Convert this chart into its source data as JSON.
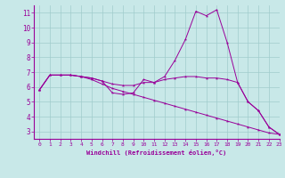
{
  "title": "",
  "xlabel": "Windchill (Refroidissement éolien,°C)",
  "ylabel": "",
  "background_color": "#c8e8e8",
  "line_color": "#990099",
  "xlim": [
    -0.5,
    23
  ],
  "ylim": [
    2.5,
    11.5
  ],
  "xticks": [
    0,
    1,
    2,
    3,
    4,
    5,
    6,
    7,
    8,
    9,
    10,
    11,
    12,
    13,
    14,
    15,
    16,
    17,
    18,
    19,
    20,
    21,
    22,
    23
  ],
  "yticks": [
    3,
    4,
    5,
    6,
    7,
    8,
    9,
    10,
    11
  ],
  "grid_color": "#a0cccc",
  "lines": [
    {
      "x": [
        0,
        1,
        2,
        3,
        4,
        5,
        6,
        7,
        8,
        9,
        10,
        11,
        12,
        13,
        14,
        15,
        16,
        17,
        18,
        19,
        20,
        21,
        22,
        23
      ],
      "y": [
        5.8,
        6.8,
        6.8,
        6.8,
        6.7,
        6.6,
        6.4,
        5.6,
        5.5,
        5.6,
        6.5,
        6.3,
        6.7,
        7.8,
        9.2,
        11.1,
        10.8,
        11.2,
        9.0,
        6.3,
        5.0,
        4.4,
        3.3,
        2.8
      ]
    },
    {
      "x": [
        0,
        1,
        2,
        3,
        4,
        5,
        6,
        7,
        8,
        9,
        10,
        11,
        12,
        13,
        14,
        15,
        16,
        17,
        18,
        19,
        20,
        21,
        22,
        23
      ],
      "y": [
        5.8,
        6.8,
        6.8,
        6.8,
        6.7,
        6.6,
        6.4,
        6.2,
        6.1,
        6.1,
        6.3,
        6.3,
        6.5,
        6.6,
        6.7,
        6.7,
        6.6,
        6.6,
        6.5,
        6.3,
        5.0,
        4.4,
        3.3,
        2.8
      ]
    },
    {
      "x": [
        0,
        1,
        2,
        3,
        4,
        5,
        6,
        7,
        8,
        9,
        10,
        11,
        12,
        13,
        14,
        15,
        16,
        17,
        18,
        19,
        20,
        21,
        22,
        23
      ],
      "y": [
        5.8,
        6.8,
        6.8,
        6.8,
        6.7,
        6.5,
        6.2,
        5.9,
        5.7,
        5.5,
        5.3,
        5.1,
        4.9,
        4.7,
        4.5,
        4.3,
        4.1,
        3.9,
        3.7,
        3.5,
        3.3,
        3.1,
        2.9,
        2.8
      ]
    }
  ]
}
